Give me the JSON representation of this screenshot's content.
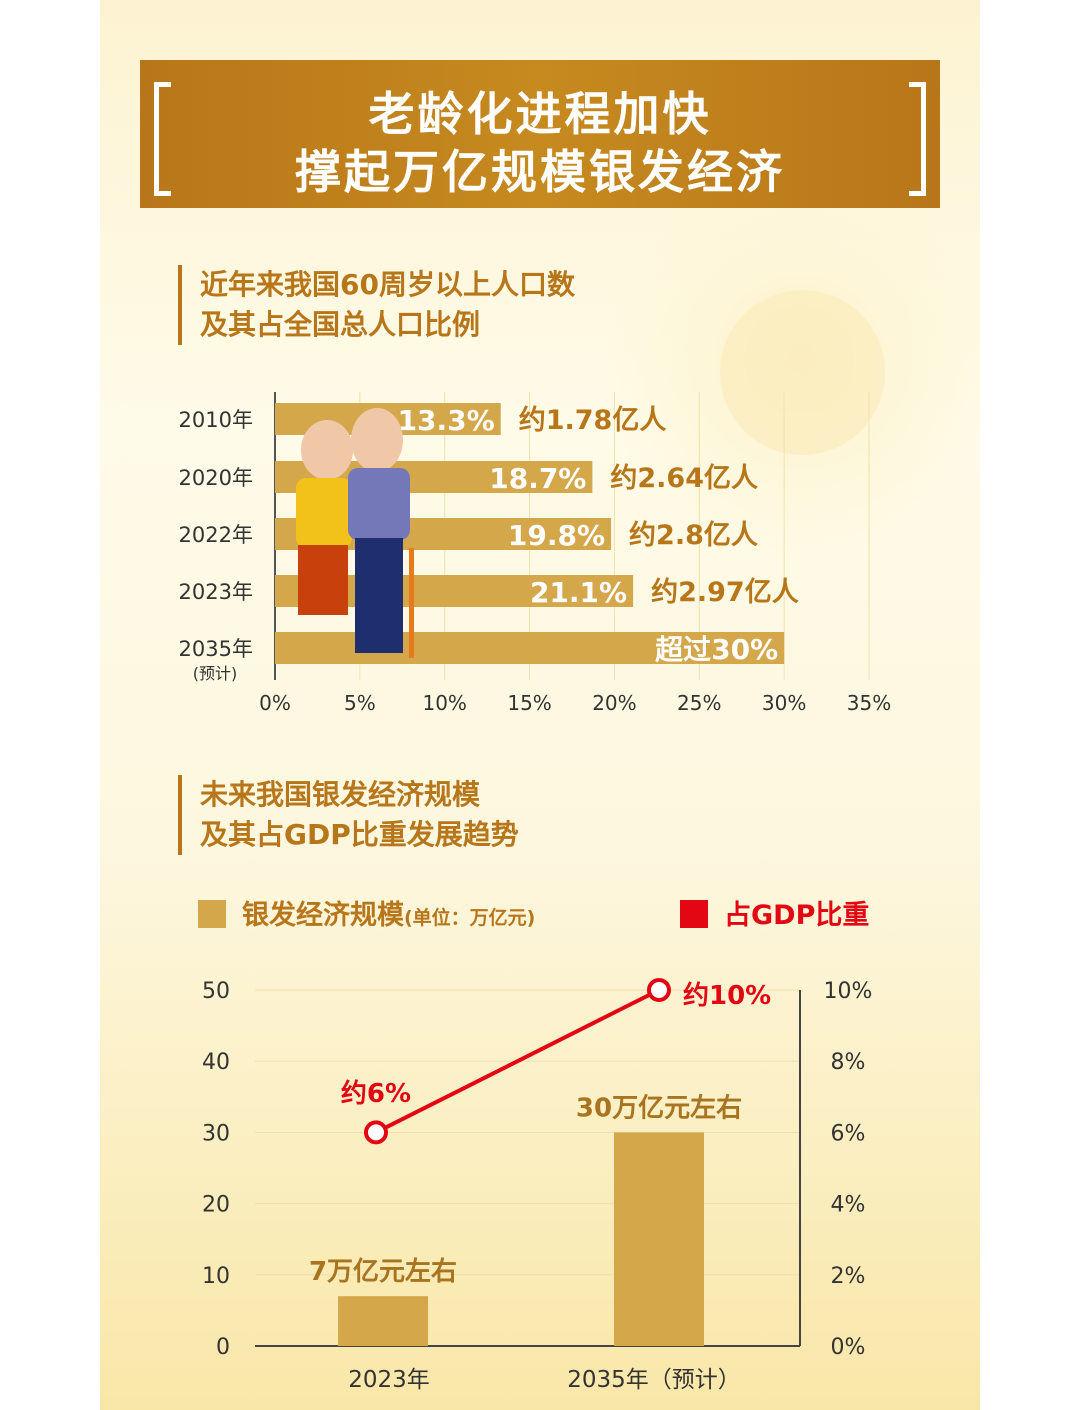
{
  "banner": {
    "line1": "老龄化进程加快",
    "line2": "撑起万亿规模银发经济"
  },
  "section1": {
    "line1": "近年来我国60周岁以上人口数",
    "line2": "及其占全国总人口比例"
  },
  "section2": {
    "line1": "未来我国银发经济规模",
    "line2": "及其占GDP比重发展趋势"
  },
  "colors": {
    "brand": "#c48a1f",
    "bar": "#d4a74a",
    "text_brown": "#b8761a",
    "line_red": "#e30613"
  },
  "chart_data": [
    {
      "type": "bar",
      "orientation": "horizontal",
      "categories": [
        "2010年",
        "2020年",
        "2022年",
        "2023年",
        "2035年"
      ],
      "category_notes": [
        "",
        "",
        "",
        "",
        "(预计)"
      ],
      "values": [
        13.3,
        18.7,
        19.8,
        21.1,
        30
      ],
      "value_labels": [
        "13.3%",
        "18.7%",
        "19.8%",
        "21.1%",
        "超过30%"
      ],
      "annotations": [
        "约1.78亿人",
        "约2.64亿人",
        "约2.8亿人",
        "约2.97亿人",
        ""
      ],
      "xlim": [
        0,
        35
      ],
      "xticks": [
        "0%",
        "5%",
        "10%",
        "15%",
        "20%",
        "25%",
        "30%",
        "35%"
      ],
      "grid": true
    },
    {
      "type": "bar+line",
      "categories": [
        "2023年",
        "2035年（预计）"
      ],
      "series": [
        {
          "name": "银发经济规模",
          "unit": "(单位：万亿元)",
          "type": "bar",
          "values": [
            7,
            30
          ],
          "labels": [
            "7万亿元左右",
            "30万亿元左右"
          ]
        },
        {
          "name": "占GDP比重",
          "type": "line",
          "values": [
            6,
            10
          ],
          "labels": [
            "约6%",
            "约10%"
          ]
        }
      ],
      "ylim_left": [
        0,
        50
      ],
      "yticks_left": [
        "0",
        "10",
        "20",
        "30",
        "40",
        "50"
      ],
      "ylim_right": [
        0,
        10
      ],
      "yticks_right": [
        "0%",
        "2%",
        "4%",
        "6%",
        "8%",
        "10%"
      ],
      "legend_placement": "top",
      "grid": true
    }
  ]
}
